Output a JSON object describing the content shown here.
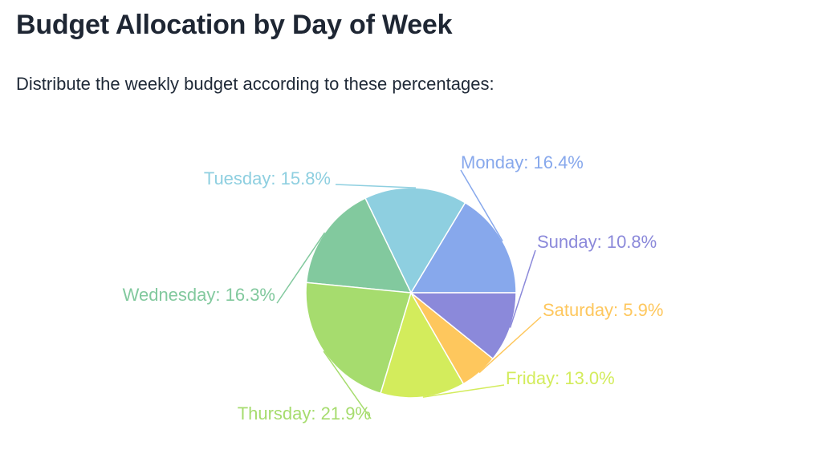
{
  "title": "Budget Allocation by Day of Week",
  "subtitle": "Distribute the weekly budget according to these percentages:",
  "chart_data": {
    "type": "pie",
    "start_angle_deg": 0,
    "direction": "counterclockwise",
    "slices": [
      {
        "label": "Monday",
        "value": 16.4,
        "display": "Monday: 16.4%",
        "color": "#87a8ec"
      },
      {
        "label": "Tuesday",
        "value": 15.8,
        "display": "Tuesday: 15.8%",
        "color": "#8ecfe0"
      },
      {
        "label": "Wednesday",
        "value": 16.3,
        "display": "Wednesday: 16.3%",
        "color": "#82c99e"
      },
      {
        "label": "Thursday",
        "value": 21.9,
        "display": "Thursday: 21.9%",
        "color": "#a6dc6e"
      },
      {
        "label": "Friday",
        "value": 13.0,
        "display": "Friday: 13.0%",
        "color": "#d3ec5c"
      },
      {
        "label": "Saturday",
        "value": 5.9,
        "display": "Saturday: 5.9%",
        "color": "#fec75d"
      },
      {
        "label": "Sunday",
        "value": 10.8,
        "display": "Sunday: 10.8%",
        "color": "#8b89da"
      }
    ]
  }
}
